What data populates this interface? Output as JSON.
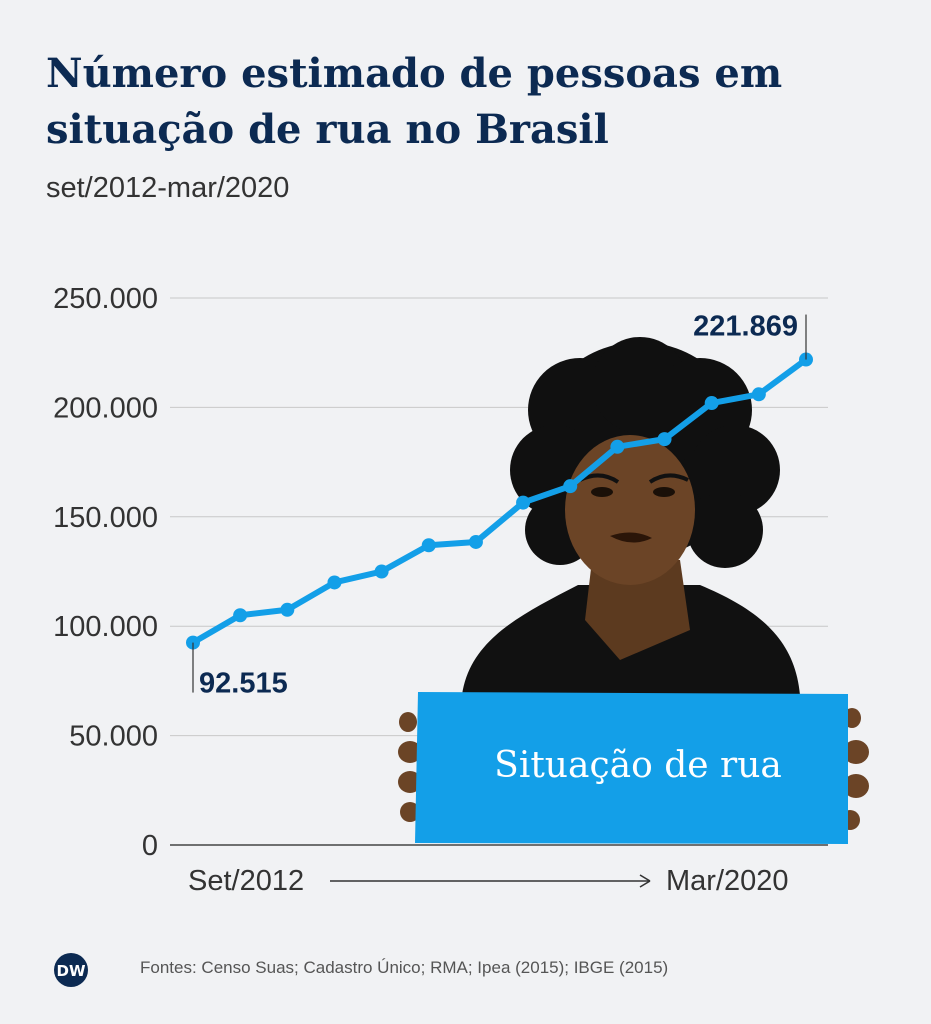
{
  "title": "Número estimado de pessoas em situação de rua no Brasil",
  "subtitle": "set/2012-mar/2020",
  "source": "Fontes: Censo Suas; Cadastro Único; RMA; Ipea (2015); IBGE (2015)",
  "logo_text": "DW",
  "sign_text": "Situação de rua",
  "colors": {
    "line": "#139fe8",
    "title": "#0c2a52",
    "sign": "#139fe8",
    "skin": "#6b4426",
    "hair": "#101010"
  },
  "chart_data": {
    "type": "line",
    "x_start_label": "Set/2012",
    "x_end_label": "Mar/2020",
    "ylim": [
      0,
      250000
    ],
    "y_ticks": [
      0,
      50000,
      100000,
      150000,
      200000,
      250000
    ],
    "y_tick_labels": [
      "0",
      "50.000",
      "100.000",
      "150.000",
      "200.000",
      "250.000"
    ],
    "values": [
      92515,
      105000,
      107500,
      120000,
      125000,
      137000,
      138500,
      156500,
      164000,
      182000,
      185500,
      202000,
      206000,
      221869
    ],
    "annotations": [
      {
        "index": 0,
        "label": "92.515"
      },
      {
        "index": 13,
        "label": "221.869"
      }
    ]
  }
}
